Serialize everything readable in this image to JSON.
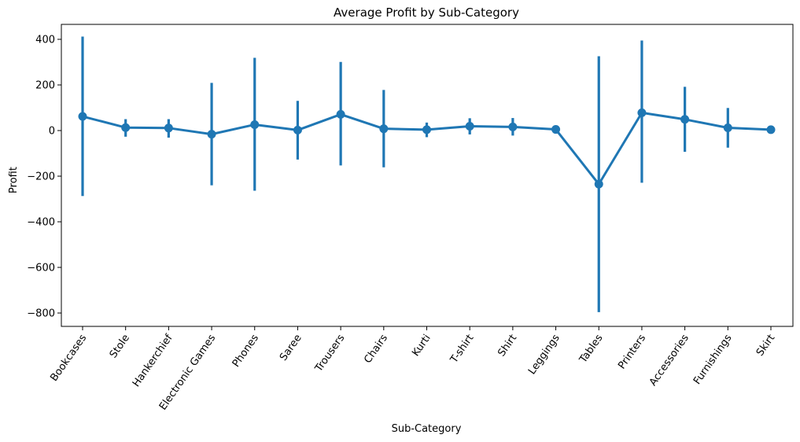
{
  "chart_data": {
    "type": "line",
    "title": "Average Profit by Sub-Category",
    "xlabel": "Sub-Category",
    "ylabel": "Profit",
    "ylim": [
      -850,
      460
    ],
    "yticks": [
      400,
      200,
      0,
      -200,
      -400,
      -600,
      -800
    ],
    "ytick_labels": [
      "400",
      "200",
      "0",
      "−200",
      "−400",
      "−600",
      "−800"
    ],
    "grid": false,
    "legend": "none",
    "color": "#1f77b4",
    "categories": [
      "Bookcases",
      "Stole",
      "Hankerchief",
      "Electronic Games",
      "Phones",
      "Saree",
      "Trousers",
      "Chairs",
      "Kurti",
      "T-shirt",
      "Shirt",
      "Leggings",
      "Tables",
      "Printers",
      "Accessories",
      "Furnishings",
      "Skirt"
    ],
    "series": [
      {
        "values": [
          62,
          13,
          11,
          -16,
          26,
          2,
          71,
          8,
          4,
          19,
          16,
          5,
          -235,
          78,
          49,
          12,
          4
        ],
        "error_low": [
          -287,
          -27,
          -31,
          -240,
          -264,
          -127,
          -153,
          -161,
          -29,
          -17,
          -22,
          3,
          -796,
          -229,
          -93,
          -75,
          4
        ],
        "error_high": [
          412,
          50,
          50,
          209,
          319,
          130,
          301,
          178,
          35,
          54,
          55,
          7,
          326,
          395,
          192,
          99,
          4
        ]
      }
    ]
  }
}
